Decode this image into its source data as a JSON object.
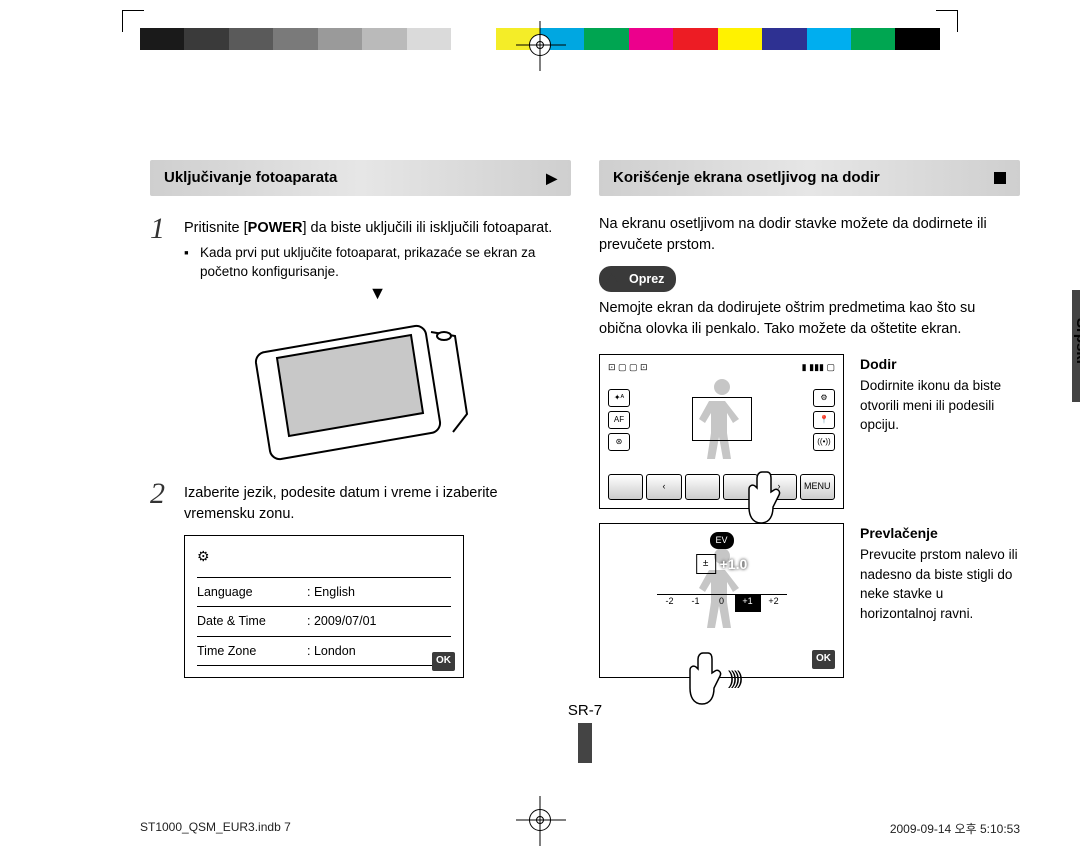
{
  "colorbar": [
    "#1a1a1a",
    "#3a3a3a",
    "#5a5a5a",
    "#7a7a7a",
    "#9a9a9a",
    "#bababa",
    "#dadada",
    "#ffffff",
    "#f4ed28",
    "#00a7e1",
    "#00a551",
    "#ec008c",
    "#ed1c24",
    "#fff200",
    "#2e3192",
    "#00aeef",
    "#00a651",
    "#000000"
  ],
  "left": {
    "banner": "Uključivanje fotoaparata",
    "step1_main": "Pritisnite [POWER] da biste uključili ili isključili fotoaparat.",
    "step1_bold": "POWER",
    "step1_sub": "Kada prvi put uključite fotoaparat, prikazaće se ekran za početno konfigurisanje.",
    "step2": "Izaberite jezik, podesite datum i vreme i izaberite vremensku zonu.",
    "settings": {
      "rows": [
        {
          "k": "Language",
          "v": "English"
        },
        {
          "k": "Date & Time",
          "v": "2009/07/01"
        },
        {
          "k": "Time Zone",
          "v": "London"
        }
      ],
      "ok": "OK"
    }
  },
  "right": {
    "banner": "Korišćenje ekrana osetljivog na dodir",
    "intro": "Na ekranu osetljivom na dodir stavke možete da dodirnete ili prevučete prstom.",
    "caution_label": "Oprez",
    "caution_text": "Nemojte ekran da dodirujete oštrim predmetima kao što su obična olovka ili penkalo. Tako možete da oštetite ekran.",
    "touch": {
      "title": "Dodir",
      "text": "Dodirnite ikonu da biste otvorili meni ili podesili opciju.",
      "left_btns": [
        "✦ᴬ",
        "AF",
        "⊛"
      ],
      "right_btns": [
        "⚙",
        "📍",
        "((•))"
      ],
      "bottom_btns": [
        "",
        "‹",
        "",
        "",
        "›",
        "MENU"
      ]
    },
    "drag": {
      "title": "Prevlačenje",
      "text": "Prevucite prstom nalevo ili nadesno da biste stigli do neke stavke u horizontalnoj ravni.",
      "ev_label": "EV",
      "ev_icon": "±",
      "ev_value": "+1.0",
      "scale": [
        "-2",
        "-1",
        "0",
        "+1",
        "+2"
      ],
      "ok": "OK"
    }
  },
  "side_tab": "Srpski",
  "page_number": "SR-7",
  "footer_left": "ST1000_QSM_EUR3.indb   7",
  "footer_right": "2009-09-14   오후 5:10:53"
}
